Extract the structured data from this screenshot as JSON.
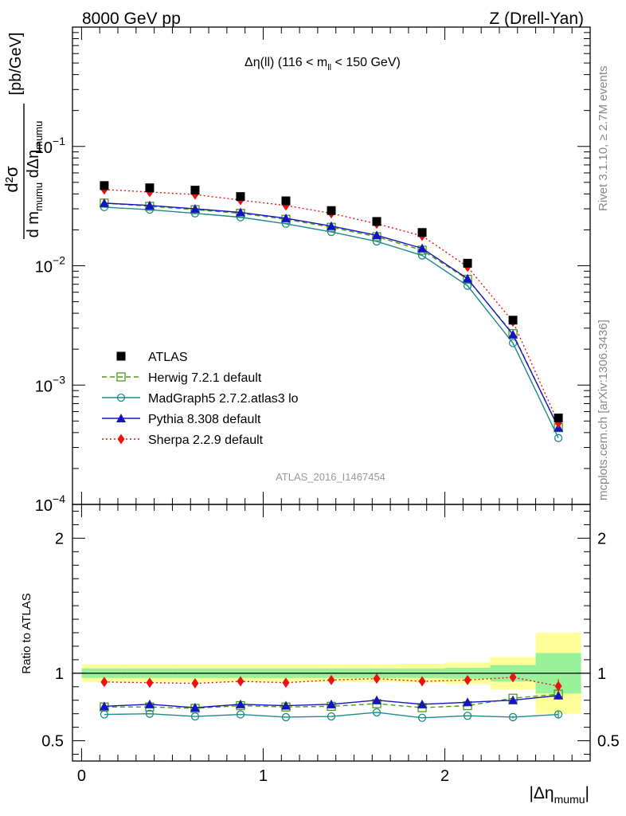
{
  "header": {
    "left_label": "8000 GeV pp",
    "right_label": "Z (Drell-Yan)"
  },
  "side_labels": {
    "rivet": "Rivet 3.1.10, ≥ 2.7M events",
    "mcplots": "mcplots.cern.ch [arXiv:1306.3436]"
  },
  "watermark": "ATLAS_2016_I1467454",
  "chart_data": {
    "type": "scatter",
    "title": "Δη(ll) (116 < m_ll < 150 GeV)",
    "title_parts": {
      "main": "Δη(ll) (116 < m",
      "sub": "ll",
      "tail": " < 150 GeV)"
    },
    "xlabel": "|Δη_mumu|",
    "xlabel_parts": {
      "main": "|Δη",
      "sub": "mumu",
      "tail": "|"
    },
    "ylabel": "d²σ / d m_mumu dΔη_mumu [pb/GeV]",
    "ylabel_parts": {
      "num": "d²σ",
      "den_a": "d m",
      "den_a_sub": "mumu",
      "den_b": " dΔη",
      "den_b_sub": "mumu",
      "unit": "[pb/GeV]"
    },
    "ratio_ylabel": "Ratio to ATLAS",
    "xlim": [
      -0.05,
      2.8
    ],
    "ylim": [
      0.0001,
      1
    ],
    "yscale": "log",
    "ratio_ylim": [
      0.35,
      2.25
    ],
    "x_ticks": [
      0,
      1,
      2
    ],
    "x_tick_labels": [
      "0",
      "1",
      "2"
    ],
    "y_ticks": [
      0.1,
      0.01,
      0.001,
      0.0001
    ],
    "y_tick_labels": [
      {
        "base": "10",
        "exp": "−1"
      },
      {
        "base": "10",
        "exp": "−2"
      },
      {
        "base": "10",
        "exp": "−3"
      },
      {
        "base": "10",
        "exp": "−4"
      }
    ],
    "ratio_y_ticks": [
      0.5,
      1,
      2
    ],
    "ratio_y_tick_labels": [
      "0.5",
      "1",
      "2"
    ],
    "x": [
      0.125,
      0.375,
      0.625,
      0.875,
      1.125,
      1.375,
      1.625,
      1.875,
      2.125,
      2.375,
      2.625
    ],
    "bin_edges": [
      0,
      0.25,
      0.5,
      0.75,
      1.0,
      1.25,
      1.5,
      1.75,
      2.0,
      2.25,
      2.5,
      2.75
    ],
    "band_green": [
      0.035,
      0.035,
      0.035,
      0.035,
      0.035,
      0.035,
      0.035,
      0.035,
      0.04,
      0.06,
      0.15
    ],
    "band_yellow": [
      0.065,
      0.065,
      0.065,
      0.065,
      0.065,
      0.065,
      0.065,
      0.07,
      0.08,
      0.12,
      0.3
    ],
    "legend_position": "lower-left",
    "series": [
      {
        "name": "ATLAS",
        "color": "#000000",
        "marker": "square-filled",
        "line": "none",
        "values": [
          0.047,
          0.045,
          0.043,
          0.038,
          0.035,
          0.029,
          0.0235,
          0.019,
          0.0105,
          0.0035,
          0.00053
        ],
        "ratio": [
          1,
          1,
          1,
          1,
          1,
          1,
          1,
          1,
          1,
          1,
          1
        ]
      },
      {
        "name": "Herwig 7.2.1 default",
        "color": "#4a9a1e",
        "marker": "square-open",
        "line": "dashed",
        "values": [
          0.0335,
          0.0315,
          0.0295,
          0.0275,
          0.0245,
          0.021,
          0.0175,
          0.0135,
          0.0077,
          0.0027,
          0.00044
        ],
        "ratio": [
          0.75,
          0.75,
          0.74,
          0.76,
          0.75,
          0.755,
          0.775,
          0.745,
          0.76,
          0.815,
          0.845
        ],
        "ratio_err": [
          0,
          0,
          0,
          0,
          0,
          0,
          0,
          0,
          0,
          0.01,
          0.03
        ]
      },
      {
        "name": "MadGraph5 2.7.2.atlas3 lo",
        "color": "#1a8a8a",
        "marker": "circle-open",
        "line": "solid",
        "values": [
          0.031,
          0.0295,
          0.0275,
          0.0255,
          0.0225,
          0.0192,
          0.016,
          0.0122,
          0.0068,
          0.00225,
          0.00036
        ],
        "ratio": [
          0.695,
          0.7,
          0.68,
          0.695,
          0.675,
          0.68,
          0.71,
          0.67,
          0.685,
          0.675,
          0.695
        ],
        "ratio_err": [
          0,
          0,
          0,
          0,
          0,
          0,
          0,
          0,
          0,
          0.01,
          0.03
        ]
      },
      {
        "name": "Pythia 8.308 default",
        "color": "#1515c0",
        "marker": "triangle-filled",
        "line": "solid",
        "values": [
          0.0335,
          0.032,
          0.03,
          0.028,
          0.025,
          0.0215,
          0.018,
          0.014,
          0.0078,
          0.00265,
          0.00044
        ],
        "ratio": [
          0.755,
          0.77,
          0.745,
          0.77,
          0.76,
          0.77,
          0.8,
          0.77,
          0.785,
          0.8,
          0.835
        ],
        "ratio_err": [
          0,
          0,
          0,
          0,
          0,
          0,
          0,
          0,
          0,
          0.01,
          0.03
        ]
      },
      {
        "name": "Sherpa 2.2.9 default",
        "color": "#ee1111",
        "marker": "diamond-filled",
        "line": "dotted",
        "values": [
          0.0435,
          0.0415,
          0.0395,
          0.0355,
          0.032,
          0.0275,
          0.0225,
          0.0178,
          0.0098,
          0.0034,
          0.00048
        ],
        "ratio": [
          0.935,
          0.93,
          0.925,
          0.94,
          0.93,
          0.95,
          0.96,
          0.94,
          0.95,
          0.97,
          0.905
        ],
        "ratio_err": [
          0,
          0,
          0,
          0,
          0,
          0,
          0,
          0,
          0,
          0.015,
          0.05
        ]
      }
    ]
  }
}
